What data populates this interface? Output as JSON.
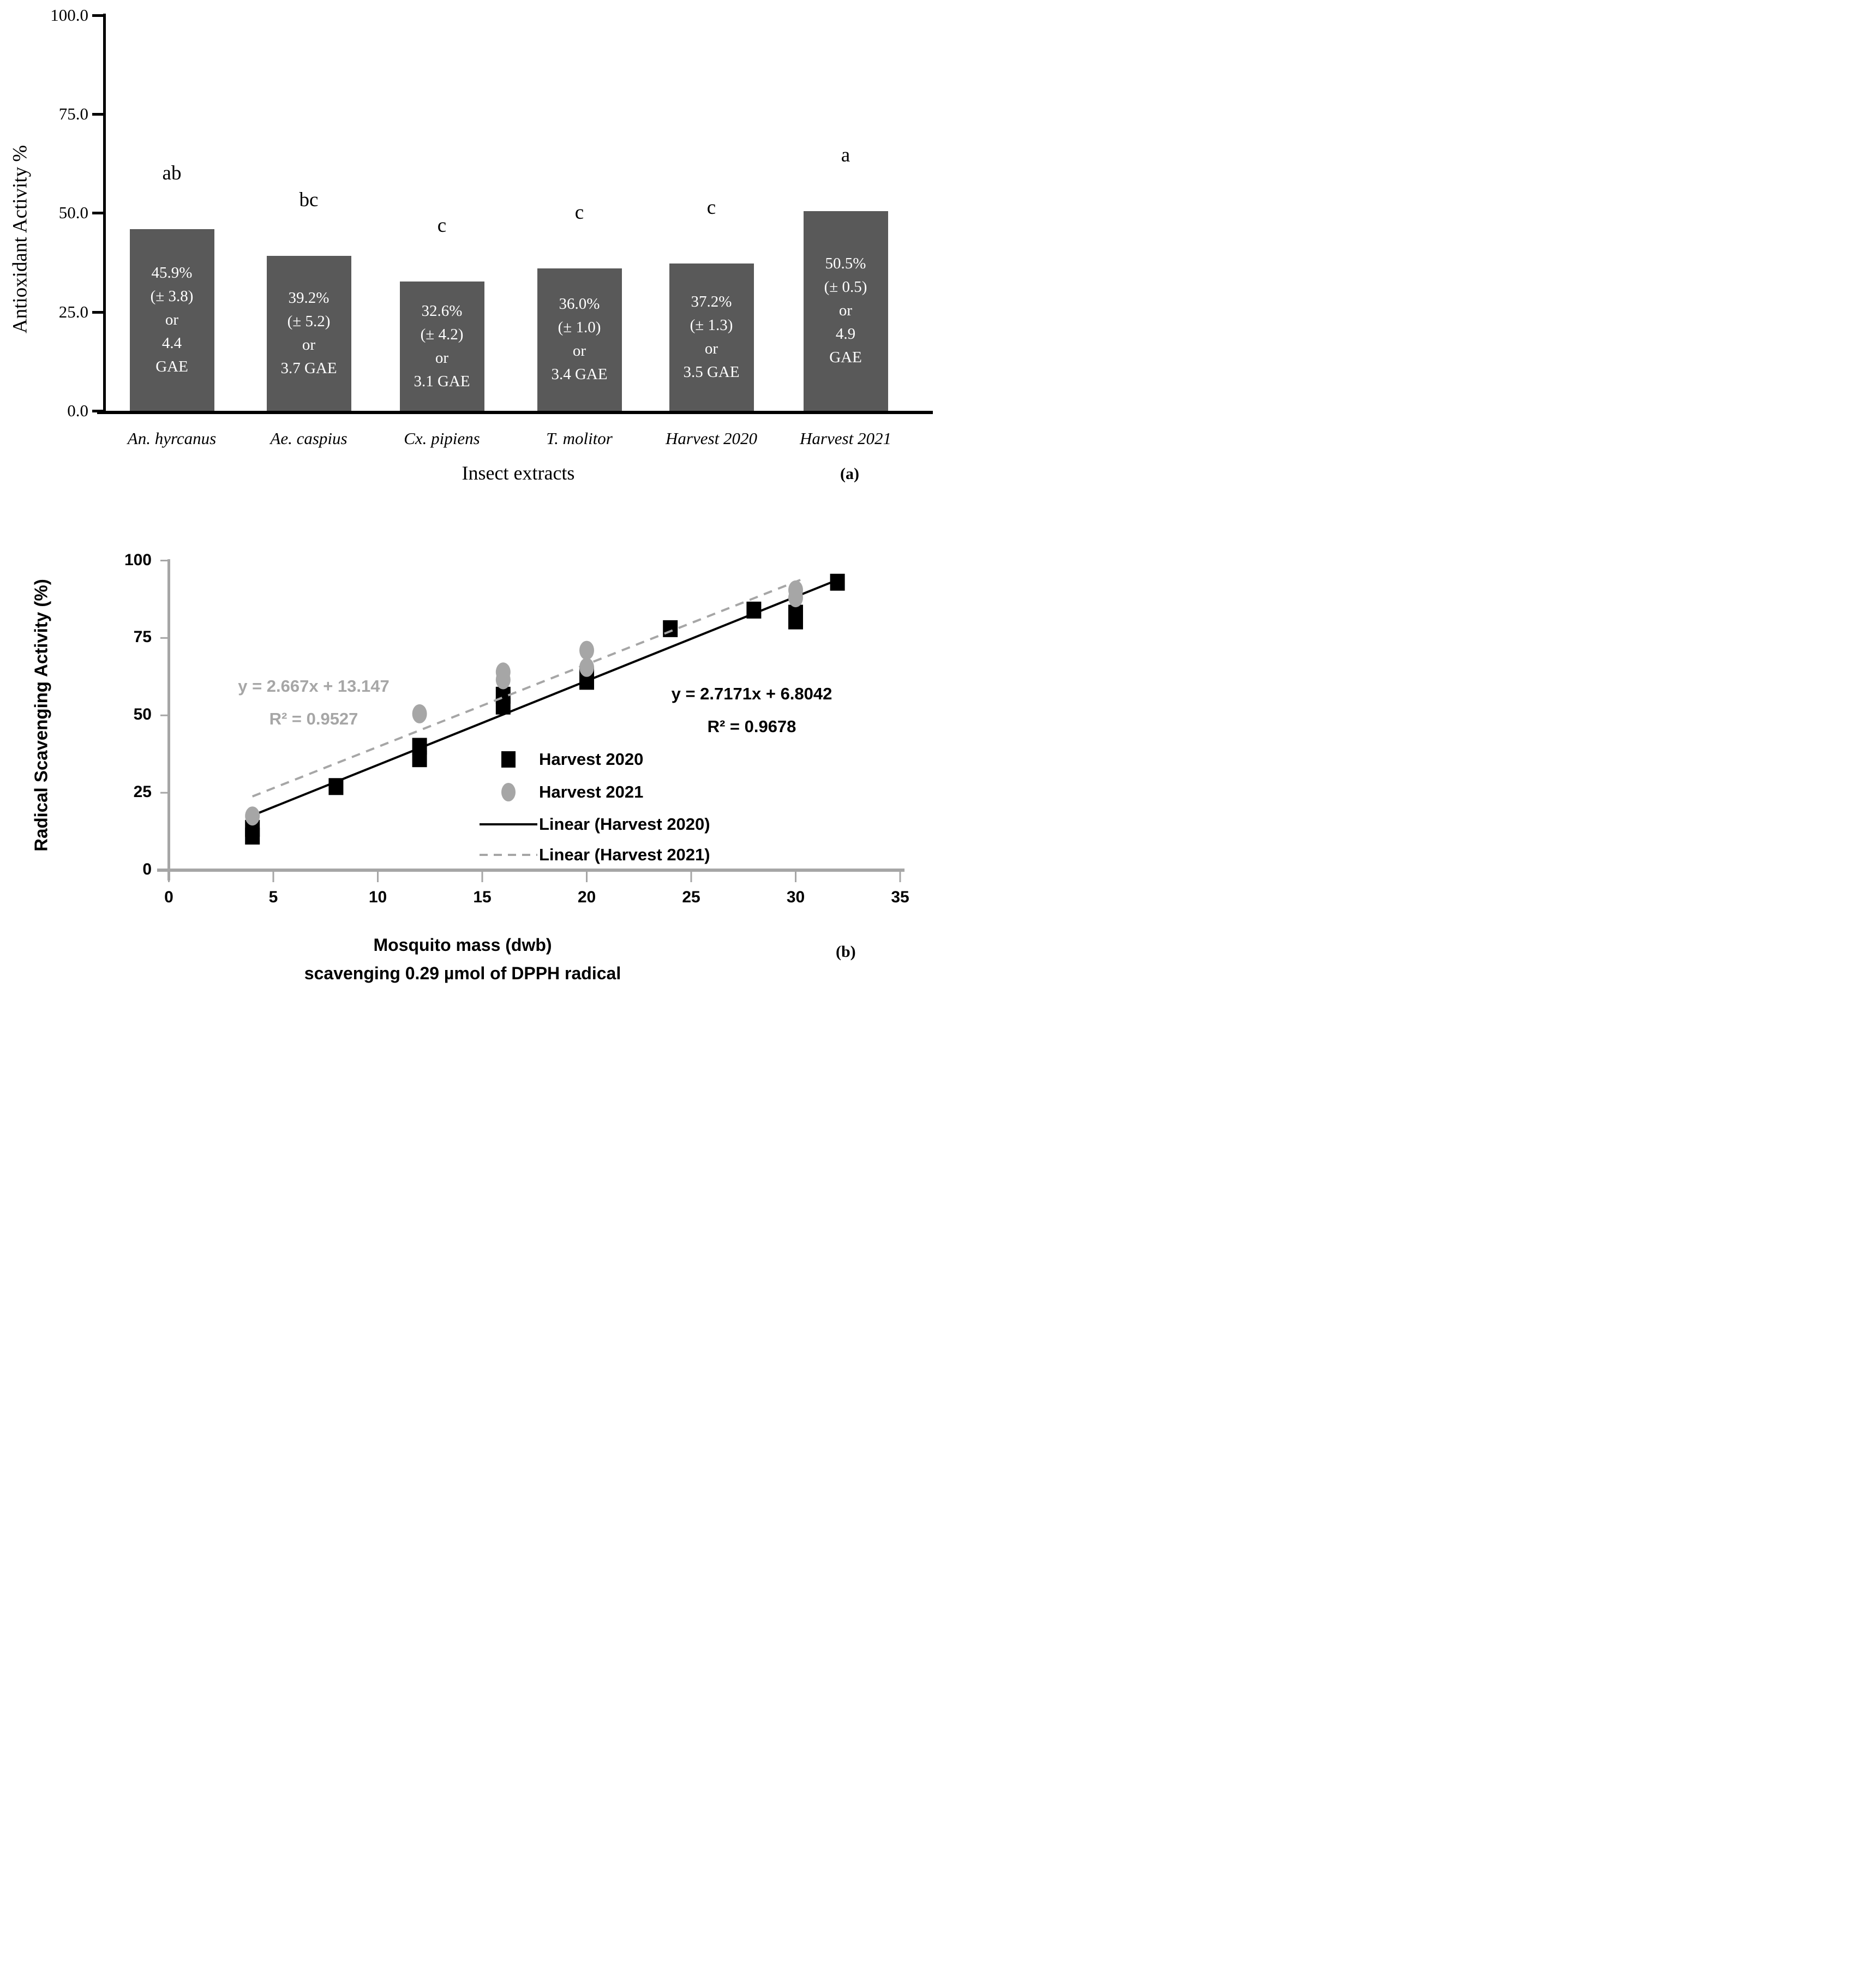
{
  "figure": {
    "panel_a_label": "(a)",
    "panel_b_label": "(b)",
    "background": "#ffffff"
  },
  "chart_data": [
    {
      "type": "bar",
      "panel": "a",
      "title": "",
      "ylabel": "Antioxidant Activity %",
      "xlabel": "Insect extracts",
      "ylim": [
        0,
        100
      ],
      "yticks": [
        0,
        25,
        50,
        75,
        100
      ],
      "ytick_labels": [
        "0.0",
        "25.0",
        "50.0",
        "75.0",
        "100.0"
      ],
      "grid": false,
      "bar_color": "#595959",
      "bar_label_color": "#ffffff",
      "categories": [
        "An. hyrcanus",
        "Ae. caspius",
        "Cx. pipiens",
        "T. molitor",
        "Harvest 2020",
        "Harvest 2021"
      ],
      "values": [
        45.9,
        39.2,
        32.6,
        36.0,
        37.2,
        50.5
      ],
      "errors_sd": [
        3.8,
        5.2,
        4.2,
        1.0,
        1.3,
        0.5
      ],
      "gae_values": [
        4.4,
        3.7,
        3.1,
        3.4,
        3.5,
        4.9
      ],
      "significance_letters": [
        "ab",
        "bc",
        "c",
        "c",
        "c",
        "a"
      ],
      "bar_label_lines": [
        [
          "45.9%",
          "(± 3.8)",
          "or",
          "4.4",
          "GAE"
        ],
        [
          "39.2%",
          "(± 5.2)",
          "or",
          "3.7 GAE"
        ],
        [
          "32.6%",
          "(± 4.2)",
          "or",
          "3.1 GAE"
        ],
        [
          "36.0%",
          "(± 1.0)",
          "or",
          "3.4 GAE"
        ],
        [
          "37.2%",
          "(± 1.3)",
          "or",
          "3.5 GAE"
        ],
        [
          "50.5%",
          "(± 0.5)",
          "or",
          "4.9",
          "GAE"
        ]
      ]
    },
    {
      "type": "scatter",
      "panel": "b",
      "title": "",
      "ylabel": "Radical Scavenging Activity (%)",
      "xlabel_line1": "Mosquito mass (dwb)",
      "xlabel_line2": "scavenging 0.29 µmol of DPPH radical",
      "xlim": [
        0,
        35
      ],
      "ylim": [
        0,
        100
      ],
      "xticks": [
        0,
        5,
        10,
        15,
        20,
        25,
        30,
        35
      ],
      "xtick_labels": [
        "0",
        "5",
        "10",
        "15",
        "20",
        "25",
        "30",
        "35"
      ],
      "yticks": [
        0,
        25,
        50,
        75,
        100
      ],
      "ytick_labels": [
        "0",
        "25",
        "50",
        "75",
        "100"
      ],
      "axis_color": "#a6a6a6",
      "grid": false,
      "legend_position": "inside-lower-right",
      "series": [
        {
          "name": "Harvest 2020",
          "marker": "square",
          "color": "#000000",
          "points": [
            [
              4,
              11
            ],
            [
              4,
              13.5
            ],
            [
              8,
              27
            ],
            [
              12,
              36
            ],
            [
              12,
              40
            ],
            [
              16,
              53
            ],
            [
              16,
              56.5
            ],
            [
              20,
              61
            ],
            [
              20,
              63
            ],
            [
              24,
              78
            ],
            [
              28,
              84
            ],
            [
              30,
              80.5
            ],
            [
              30,
              83
            ],
            [
              32,
              93
            ]
          ],
          "trendline": {
            "legend_label": "Linear (Harvest 2020)",
            "equation": "y = 2.7171x + 6.8042",
            "r_squared": "R² = 0.9678",
            "slope": 2.7171,
            "intercept": 6.8042,
            "line_style": "solid",
            "line_color": "#000000",
            "x_range": [
              4,
              32.3
            ]
          }
        },
        {
          "name": "Harvest 2021",
          "marker": "circle",
          "color": "#a6a6a6",
          "points": [
            [
              4,
              17.5
            ],
            [
              12,
              50.5
            ],
            [
              16,
              61.5
            ],
            [
              16,
              64
            ],
            [
              20,
              65.5
            ],
            [
              20,
              71
            ],
            [
              30,
              88
            ],
            [
              30,
              90.5
            ]
          ],
          "trendline": {
            "legend_label": "Linear (Harvest 2021)",
            "equation": "y = 2.667x + 13.147",
            "r_squared": "R² = 0.9527",
            "slope": 2.667,
            "intercept": 13.147,
            "line_style": "dashed",
            "line_color": "#a6a6a6",
            "x_range": [
              4,
              30.3
            ]
          }
        }
      ],
      "legend_entries": [
        "Harvest 2020",
        "Harvest 2021",
        "Linear (Harvest 2020)",
        "Linear (Harvest 2021)"
      ]
    }
  ]
}
